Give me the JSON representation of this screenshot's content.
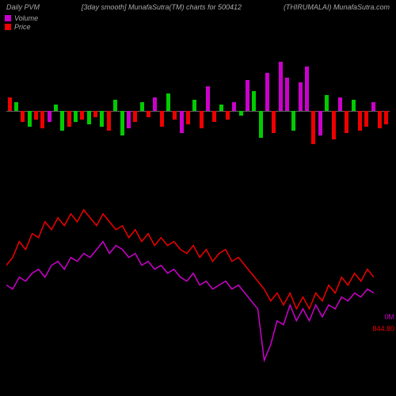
{
  "header": {
    "left": "Daily PVM",
    "center": "[3day smooth] MunafaSutra(TM) charts for 500412",
    "right": "(THIRUMALAI) MunafaSutra.com"
  },
  "legend": {
    "items": [
      {
        "label": "Volume",
        "color": "#cc00cc"
      },
      {
        "label": "Price",
        "color": "#ee0000"
      }
    ]
  },
  "volume_chart": {
    "type": "bar-bidirectional",
    "baseline_color": "#666666",
    "colors": {
      "up_red": "#ee0000",
      "down_red": "#ee0000",
      "up_green": "#00cc00",
      "down_green": "#00cc00",
      "up_magenta": "#cc00cc",
      "down_magenta": "#cc00cc"
    },
    "max_abs": 50,
    "bars": [
      {
        "v": 12,
        "c": "#ee0000"
      },
      {
        "v": 8,
        "c": "#00cc00"
      },
      {
        "v": -10,
        "c": "#ee0000"
      },
      {
        "v": -14,
        "c": "#00cc00"
      },
      {
        "v": -8,
        "c": "#ee0000"
      },
      {
        "v": -16,
        "c": "#ee0000"
      },
      {
        "v": -10,
        "c": "#cc00cc"
      },
      {
        "v": 6,
        "c": "#00cc00"
      },
      {
        "v": -18,
        "c": "#00cc00"
      },
      {
        "v": -14,
        "c": "#ee0000"
      },
      {
        "v": -10,
        "c": "#00cc00"
      },
      {
        "v": -8,
        "c": "#ee0000"
      },
      {
        "v": -12,
        "c": "#00cc00"
      },
      {
        "v": -6,
        "c": "#ee0000"
      },
      {
        "v": -14,
        "c": "#00cc00"
      },
      {
        "v": -18,
        "c": "#ee0000"
      },
      {
        "v": 10,
        "c": "#00cc00"
      },
      {
        "v": -22,
        "c": "#00cc00"
      },
      {
        "v": -16,
        "c": "#cc00cc"
      },
      {
        "v": -10,
        "c": "#ee0000"
      },
      {
        "v": 8,
        "c": "#00cc00"
      },
      {
        "v": -6,
        "c": "#ee0000"
      },
      {
        "v": 12,
        "c": "#cc00cc"
      },
      {
        "v": -14,
        "c": "#ee0000"
      },
      {
        "v": 16,
        "c": "#00cc00"
      },
      {
        "v": -8,
        "c": "#ee0000"
      },
      {
        "v": -20,
        "c": "#cc00cc"
      },
      {
        "v": -12,
        "c": "#ee0000"
      },
      {
        "v": 10,
        "c": "#00cc00"
      },
      {
        "v": -16,
        "c": "#ee0000"
      },
      {
        "v": 22,
        "c": "#cc00cc"
      },
      {
        "v": -10,
        "c": "#ee0000"
      },
      {
        "v": 6,
        "c": "#00cc00"
      },
      {
        "v": -8,
        "c": "#ee0000"
      },
      {
        "v": 8,
        "c": "#cc00cc"
      },
      {
        "v": -4,
        "c": "#00cc00"
      },
      {
        "v": 28,
        "c": "#cc00cc"
      },
      {
        "v": 18,
        "c": "#00cc00"
      },
      {
        "v": -24,
        "c": "#00cc00"
      },
      {
        "v": 34,
        "c": "#cc00cc"
      },
      {
        "v": -20,
        "c": "#ee0000"
      },
      {
        "v": 44,
        "c": "#cc00cc"
      },
      {
        "v": 30,
        "c": "#cc00cc"
      },
      {
        "v": -18,
        "c": "#00cc00"
      },
      {
        "v": 26,
        "c": "#cc00cc"
      },
      {
        "v": 40,
        "c": "#cc00cc"
      },
      {
        "v": -30,
        "c": "#ee0000"
      },
      {
        "v": -22,
        "c": "#cc00cc"
      },
      {
        "v": 14,
        "c": "#00cc00"
      },
      {
        "v": -26,
        "c": "#ee0000"
      },
      {
        "v": 12,
        "c": "#cc00cc"
      },
      {
        "v": -20,
        "c": "#ee0000"
      },
      {
        "v": 10,
        "c": "#00cc00"
      },
      {
        "v": -18,
        "c": "#ee0000"
      },
      {
        "v": -14,
        "c": "#ee0000"
      },
      {
        "v": 8,
        "c": "#cc00cc"
      },
      {
        "v": -16,
        "c": "#ee0000"
      },
      {
        "v": -12,
        "c": "#ee0000"
      }
    ]
  },
  "line_chart": {
    "type": "line",
    "colors": {
      "volume": "#cc00cc",
      "price": "#ee0000"
    },
    "stroke_width": 1.5,
    "x_count": 58,
    "y_min": 0,
    "y_max": 100,
    "volume_series": [
      48,
      46,
      52,
      50,
      54,
      56,
      52,
      58,
      60,
      56,
      62,
      60,
      64,
      62,
      66,
      70,
      64,
      68,
      66,
      62,
      64,
      58,
      60,
      56,
      58,
      54,
      56,
      52,
      50,
      54,
      48,
      50,
      46,
      48,
      50,
      46,
      48,
      44,
      40,
      36,
      10,
      18,
      30,
      28,
      38,
      30,
      36,
      30,
      38,
      32,
      38,
      36,
      42,
      40,
      44,
      42,
      46,
      44
    ],
    "price_series": [
      58,
      62,
      70,
      66,
      74,
      72,
      80,
      76,
      82,
      78,
      84,
      80,
      86,
      82,
      78,
      84,
      80,
      76,
      78,
      72,
      76,
      70,
      74,
      68,
      72,
      68,
      70,
      66,
      64,
      68,
      62,
      66,
      60,
      64,
      66,
      60,
      62,
      58,
      54,
      50,
      46,
      40,
      44,
      38,
      44,
      36,
      42,
      36,
      44,
      40,
      48,
      44,
      52,
      48,
      54,
      50,
      56,
      52
    ]
  },
  "end_labels": {
    "volume": "0M",
    "price": "844.80"
  }
}
